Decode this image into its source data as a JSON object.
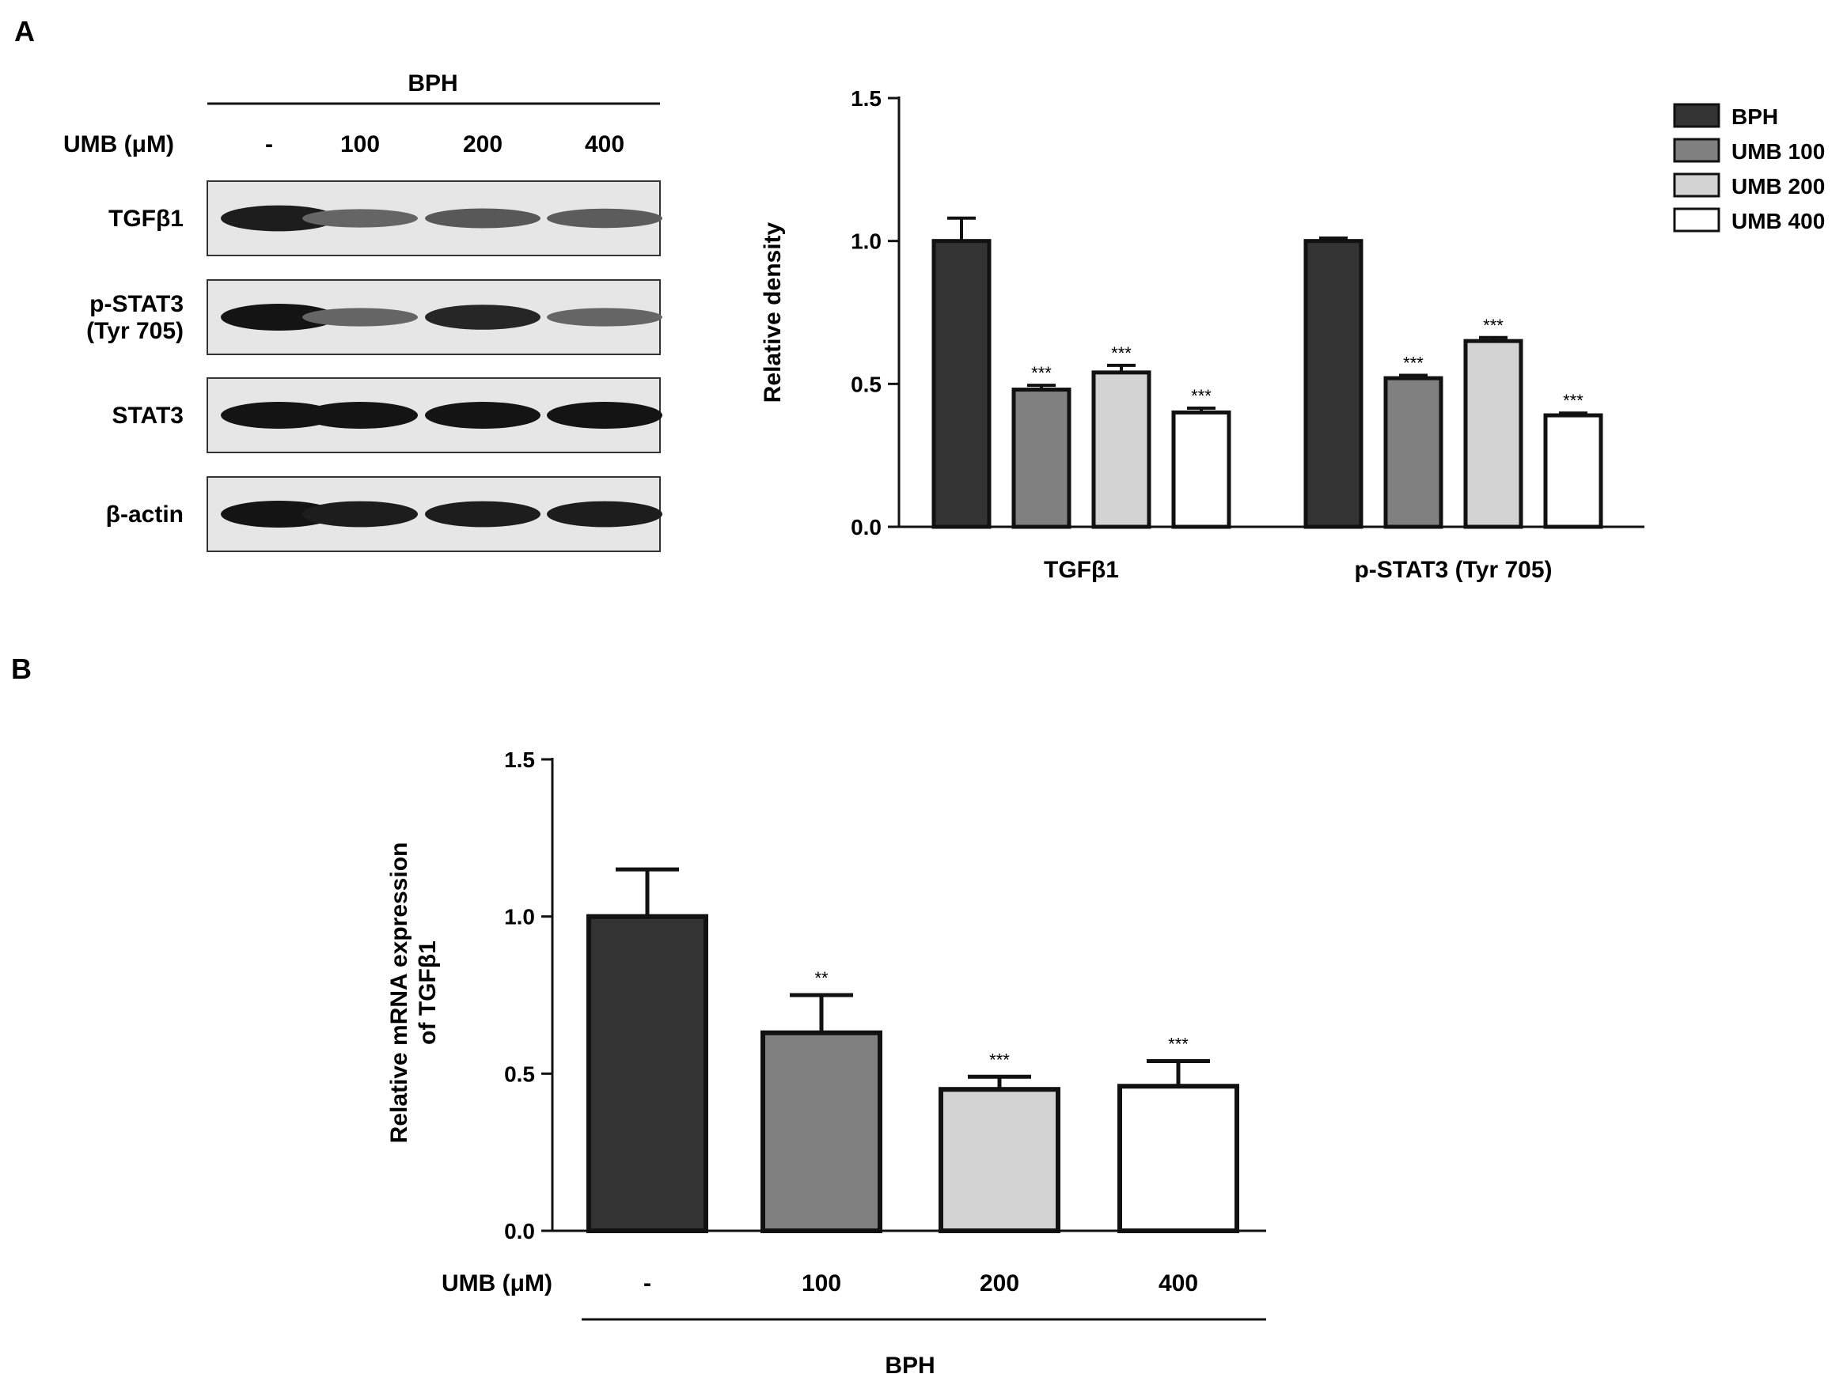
{
  "panels": {
    "a_label": "A",
    "b_label": "B"
  },
  "blot": {
    "group_label": "BPH",
    "treatment_label": "UMB (μM)",
    "lanes": [
      "-",
      "100",
      "200",
      "400"
    ],
    "rows": [
      {
        "label_lines": [
          "TGFβ1"
        ],
        "band_intensity": [
          0.95,
          0.55,
          0.62,
          0.6
        ]
      },
      {
        "label_lines": [
          "p-STAT3",
          "(Tyr 705)"
        ],
        "band_intensity": [
          1.0,
          0.55,
          0.9,
          0.55
        ]
      },
      {
        "label_lines": [
          "STAT3"
        ],
        "band_intensity": [
          1.0,
          1.0,
          1.0,
          1.0
        ]
      },
      {
        "label_lines": [
          "β-actin"
        ],
        "band_intensity": [
          1.0,
          0.95,
          0.95,
          0.95
        ]
      }
    ]
  },
  "chart_data": [
    {
      "type": "bar",
      "title": "",
      "xlabel": "",
      "ylabel": "Relative density",
      "ylim": [
        0,
        1.5
      ],
      "yticks": [
        "0.0",
        "0.5",
        "1.0",
        "1.5"
      ],
      "categories": [
        "TGFβ1",
        "p-STAT3 (Tyr 705)"
      ],
      "legend_position": "top-right",
      "series": [
        {
          "name": "BPH",
          "color": "#333333",
          "values": [
            1.0,
            1.0
          ],
          "errors": [
            0.08,
            0.01
          ],
          "annotations": [
            "",
            ""
          ]
        },
        {
          "name": "UMB 100",
          "color": "#808080",
          "values": [
            0.48,
            0.52
          ],
          "errors": [
            0.015,
            0.01
          ],
          "annotations": [
            "***",
            "***"
          ]
        },
        {
          "name": "UMB 200",
          "color": "#d3d3d3",
          "values": [
            0.54,
            0.65
          ],
          "errors": [
            0.025,
            0.012
          ],
          "annotations": [
            "***",
            "***"
          ]
        },
        {
          "name": "UMB 400",
          "color": "#ffffff",
          "values": [
            0.4,
            0.39
          ],
          "errors": [
            0.015,
            0.008
          ],
          "annotations": [
            "***",
            "***"
          ]
        }
      ]
    },
    {
      "type": "bar",
      "title": "",
      "ylabel_lines": [
        "Relative mRNA expression",
        "of TGFβ1"
      ],
      "ylim": [
        0,
        1.5
      ],
      "yticks": [
        "0.0",
        "0.5",
        "1.0",
        "1.5"
      ],
      "x_axis_label": "UMB (μM)",
      "categories": [
        "-",
        "100",
        "200",
        "400"
      ],
      "group_label": "BPH",
      "values": [
        1.0,
        0.63,
        0.45,
        0.46
      ],
      "errors": [
        0.15,
        0.12,
        0.04,
        0.08
      ],
      "colors": [
        "#333333",
        "#808080",
        "#d3d3d3",
        "#ffffff"
      ],
      "annotations": [
        "",
        "**",
        "***",
        "***"
      ]
    }
  ]
}
